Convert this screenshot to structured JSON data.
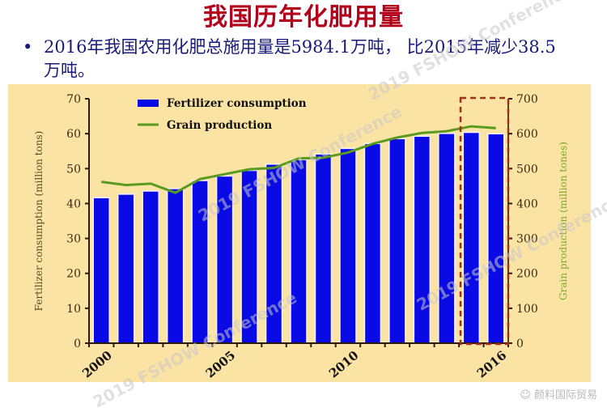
{
  "header": {
    "title": "我国历年化肥用量",
    "bullet_symbol": "•",
    "bullet_text": "2016年我国农用化肥总施用量是5984.1万吨， 比2015年减少38.5万吨。"
  },
  "colors": {
    "title": "#b3001b",
    "bullet_text": "#1a1a7a",
    "panel_bg": "#fbe3a4",
    "bar": "#0a0ae6",
    "line": "#5a9a1e",
    "highlight_box": "#a0301a",
    "right_axis_label": "#7aa82a"
  },
  "footer": {
    "text": "颜料国际贸易"
  },
  "watermark": {
    "text": "2019 FSHOW Conference"
  },
  "chart_data": {
    "type": "bar",
    "title": "",
    "xlabel": "",
    "ylabel": "Fertilizer consumption (million tons)",
    "y2label": "Grain production (million tones)",
    "ylim": [
      0,
      70
    ],
    "y2lim": [
      0,
      700
    ],
    "yticks": [
      0,
      10,
      20,
      30,
      40,
      50,
      60,
      70
    ],
    "y2ticks": [
      0,
      100,
      200,
      300,
      400,
      500,
      600,
      700
    ],
    "x": [
      2000,
      2001,
      2002,
      2003,
      2004,
      2005,
      2006,
      2007,
      2008,
      2009,
      2010,
      2011,
      2012,
      2013,
      2014,
      2015,
      2016
    ],
    "xtick_labels": [
      "2000",
      "2005",
      "2010",
      "2016"
    ],
    "legend": [
      "Fertilizer consumption",
      "Grain production"
    ],
    "legend_position": "top-left",
    "grid": false,
    "series": [
      {
        "name": "Fertilizer consumption",
        "type": "bar",
        "axis": "left",
        "values": [
          41.5,
          42.5,
          43.4,
          44.1,
          46.4,
          47.7,
          49.3,
          51.1,
          52.4,
          54.0,
          55.6,
          57.0,
          58.4,
          59.1,
          59.9,
          60.2,
          59.8
        ]
      },
      {
        "name": "Grain production",
        "type": "line",
        "axis": "right",
        "values": [
          462,
          453,
          457,
          431,
          470,
          484,
          498,
          502,
          529,
          531,
          546,
          571,
          589,
          602,
          607,
          621,
          616
        ]
      }
    ],
    "annotations": [
      {
        "type": "dashed-box",
        "covers": [
          2015,
          2016
        ],
        "color": "#a0301a"
      }
    ]
  }
}
